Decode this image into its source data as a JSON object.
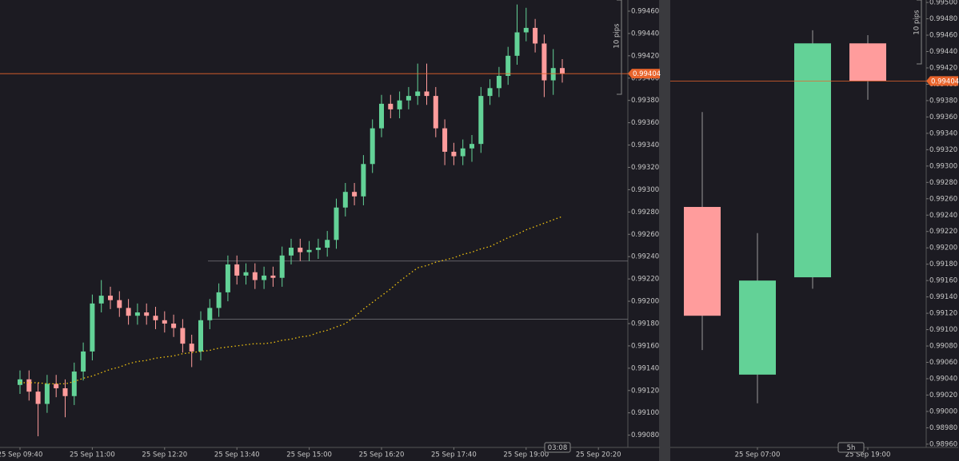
{
  "chart_data": [
    {
      "type": "candlestick",
      "categories": [
        "25 Sep 09:40",
        null,
        null,
        null,
        null,
        null,
        null,
        null,
        "25 Sep 11:00",
        null,
        null,
        null,
        null,
        null,
        null,
        null,
        "25 Sep 12:20",
        null,
        null,
        null,
        null,
        null,
        null,
        null,
        "25 Sep 13:40",
        null,
        null,
        null,
        null,
        null,
        null,
        null,
        "25 Sep 15:00",
        null,
        null,
        null,
        null,
        null,
        null,
        null,
        "25 Sep 16:20",
        null,
        null,
        null,
        null,
        null,
        null,
        null,
        "25 Sep 17:40",
        null,
        null,
        null,
        null,
        null,
        null,
        null,
        "25 Sep 19:00",
        null,
        null,
        null,
        null,
        null,
        null,
        null,
        "25 Sep 20:20",
        null,
        null
      ],
      "open": [
        0.99125,
        0.9913,
        0.99119,
        0.99108,
        0.99126,
        0.99122,
        0.99115,
        0.99137,
        0.99155,
        0.99198,
        0.99205,
        0.99201,
        0.99194,
        0.99187,
        0.9919,
        0.99187,
        0.99183,
        0.9918,
        0.99176,
        0.99162,
        0.99155,
        0.99183,
        0.99194,
        0.99208,
        0.99233,
        0.99223,
        0.99226,
        0.99219,
        0.99223,
        0.99221,
        0.99241,
        0.99248,
        0.99244,
        0.99246,
        0.99248,
        0.99255,
        0.99284,
        0.99298,
        0.99294,
        0.99323,
        0.99355,
        0.99377,
        0.99372,
        0.9938,
        0.99384,
        0.99388,
        0.99384,
        0.99355,
        0.99334,
        0.9933,
        0.99337,
        0.99341,
        0.99384,
        0.99391,
        0.99402,
        0.9942,
        0.99441,
        0.99445,
        0.99431,
        0.99398,
        0.99409,
        null,
        null,
        null,
        null,
        null,
        null
      ],
      "high": [
        0.99138,
        0.99138,
        0.99127,
        0.99134,
        0.99134,
        0.9913,
        0.99145,
        0.99163,
        0.99206,
        0.99219,
        0.99213,
        0.99209,
        0.99202,
        0.99198,
        0.99198,
        0.99195,
        0.99191,
        0.99188,
        0.99184,
        0.9917,
        0.99191,
        0.99202,
        0.99216,
        0.99241,
        0.99241,
        0.99234,
        0.99234,
        0.99231,
        0.99231,
        0.99249,
        0.99256,
        0.99256,
        0.99254,
        0.99256,
        0.99263,
        0.99292,
        0.99306,
        0.99306,
        0.99331,
        0.99363,
        0.99385,
        0.99385,
        0.99388,
        0.99392,
        0.99413,
        0.99413,
        0.99392,
        0.99363,
        0.99342,
        0.99345,
        0.99349,
        0.99392,
        0.99399,
        0.9941,
        0.99428,
        0.99466,
        0.99463,
        0.99453,
        0.99439,
        0.99426,
        0.99417,
        null,
        null,
        null,
        null,
        null,
        null
      ],
      "low": [
        0.99117,
        0.99111,
        0.99079,
        0.991,
        0.99114,
        0.99096,
        0.99107,
        0.99129,
        0.99147,
        0.9919,
        0.99193,
        0.99186,
        0.99179,
        0.99179,
        0.99179,
        0.99175,
        0.99172,
        0.99168,
        0.99154,
        0.99141,
        0.99147,
        0.99175,
        0.99186,
        0.992,
        0.99215,
        0.99215,
        0.99211,
        0.99211,
        0.99213,
        0.99213,
        0.99233,
        0.99236,
        0.99236,
        0.99238,
        0.9924,
        0.99247,
        0.99276,
        0.99286,
        0.99286,
        0.99315,
        0.99347,
        0.99364,
        0.99364,
        0.99372,
        0.99376,
        0.99376,
        0.99347,
        0.99322,
        0.99322,
        0.99322,
        0.99325,
        0.99333,
        0.99376,
        0.99383,
        0.99394,
        0.99412,
        0.99433,
        0.99423,
        0.99383,
        0.99385,
        0.99396,
        null,
        null,
        null,
        null,
        null,
        null
      ],
      "close": [
        0.9913,
        0.99119,
        0.99108,
        0.99126,
        0.99122,
        0.99115,
        0.99137,
        0.99155,
        0.99198,
        0.99205,
        0.99201,
        0.99194,
        0.99187,
        0.9919,
        0.99187,
        0.99183,
        0.9918,
        0.99176,
        0.99162,
        0.99155,
        0.99183,
        0.99194,
        0.99208,
        0.99233,
        0.99223,
        0.99226,
        0.99219,
        0.99223,
        0.99221,
        0.99241,
        0.99248,
        0.99244,
        0.99246,
        0.99248,
        0.99255,
        0.99284,
        0.99298,
        0.99294,
        0.99323,
        0.99355,
        0.99377,
        0.99372,
        0.9938,
        0.99384,
        0.99388,
        0.99384,
        0.99355,
        0.99334,
        0.9933,
        0.99337,
        0.99341,
        0.99384,
        0.99391,
        0.99402,
        0.9942,
        0.99441,
        0.99445,
        0.99431,
        0.99398,
        0.99409,
        0.99404,
        null,
        null,
        null,
        null,
        null,
        null
      ],
      "moving_average": {
        "color": "#f2c40f",
        "values": [
          0.99127,
          0.99127,
          0.99127,
          0.99126,
          0.99126,
          0.99126,
          0.99128,
          0.99131,
          0.99133,
          0.99136,
          0.99139,
          0.99141,
          0.99144,
          0.99146,
          0.99147,
          0.99149,
          0.9915,
          0.99151,
          0.99153,
          0.99154,
          0.99155,
          0.99156,
          0.99158,
          0.99159,
          0.9916,
          0.99161,
          0.99162,
          0.99162,
          0.99163,
          0.99165,
          0.99166,
          0.99168,
          0.99169,
          0.99172,
          0.99174,
          0.99177,
          0.9918,
          0.99186,
          0.99193,
          0.99199,
          0.99205,
          0.99211,
          0.99218,
          0.99224,
          0.9923,
          0.99232,
          0.99235,
          0.99237,
          0.99239,
          0.99242,
          0.99244,
          0.99247,
          0.99249,
          0.99253,
          0.99257,
          0.9926,
          0.99264,
          0.99267,
          0.9927,
          0.99273,
          0.99276,
          null,
          null,
          null,
          null,
          null,
          null
        ]
      },
      "levels": [
        0.99236,
        0.99184
      ],
      "current_price": 0.99404,
      "up_color": "#63d297",
      "down_color": "#ff9c9c",
      "price_color": "#e8642c",
      "ylim": [
        0.99069,
        0.9947
      ],
      "yticks": [
        {
          "value": 0.9908,
          "label": "0.99080"
        },
        {
          "value": 0.991,
          "label": "0.99100"
        },
        {
          "value": 0.9912,
          "label": "0.99120"
        },
        {
          "value": 0.9914,
          "label": "0.99140"
        },
        {
          "value": 0.9916,
          "label": "0.99160"
        },
        {
          "value": 0.9918,
          "label": "0.99180"
        },
        {
          "value": 0.992,
          "label": "0.99200"
        },
        {
          "value": 0.9922,
          "label": "0.99220"
        },
        {
          "value": 0.9924,
          "label": "0.99240"
        },
        {
          "value": 0.9926,
          "label": "0.99260"
        },
        {
          "value": 0.9928,
          "label": "0.99280"
        },
        {
          "value": 0.993,
          "label": "0.99300"
        },
        {
          "value": 0.9932,
          "label": "0.99320"
        },
        {
          "value": 0.9934,
          "label": "0.99340"
        },
        {
          "value": 0.9936,
          "label": "0.99360"
        },
        {
          "value": 0.9938,
          "label": "0.99380"
        },
        {
          "value": 0.994,
          "label": "0.99400"
        },
        {
          "value": 0.9942,
          "label": "0.99420"
        },
        {
          "value": 0.9944,
          "label": "0.99440"
        },
        {
          "value": 0.9946,
          "label": "0.99460"
        }
      ],
      "ruler_label": "10 pips",
      "timer_label": "03:08"
    },
    {
      "type": "candlestick",
      "categories": [
        null,
        "25 Sep 07:00",
        null,
        "25 Sep 19:00"
      ],
      "open": [
        0.9925,
        0.99045,
        0.99164,
        0.9945
      ],
      "high": [
        0.99366,
        0.99218,
        0.99466,
        0.9946
      ],
      "low": [
        0.99075,
        0.9901,
        0.9915,
        0.99381
      ],
      "close": [
        0.99117,
        0.9916,
        0.9945,
        0.99404
      ],
      "current_price": 0.99404,
      "up_color": "#63d297",
      "down_color": "#ff9c9c",
      "price_color": "#e8642c",
      "ylim": [
        0.98956,
        0.99503
      ],
      "yticks": [
        {
          "value": 0.9896,
          "label": "0.98960"
        },
        {
          "value": 0.9898,
          "label": "0.98980"
        },
        {
          "value": 0.99,
          "label": "0.99000"
        },
        {
          "value": 0.9902,
          "label": "0.99020"
        },
        {
          "value": 0.9904,
          "label": "0.99040"
        },
        {
          "value": 0.9906,
          "label": "0.99060"
        },
        {
          "value": 0.9908,
          "label": "0.99080"
        },
        {
          "value": 0.991,
          "label": "0.99100"
        },
        {
          "value": 0.9912,
          "label": "0.99120"
        },
        {
          "value": 0.9914,
          "label": "0.99140"
        },
        {
          "value": 0.9916,
          "label": "0.99160"
        },
        {
          "value": 0.9918,
          "label": "0.99180"
        },
        {
          "value": 0.992,
          "label": "0.99200"
        },
        {
          "value": 0.9922,
          "label": "0.99220"
        },
        {
          "value": 0.9924,
          "label": "0.99240"
        },
        {
          "value": 0.9926,
          "label": "0.99260"
        },
        {
          "value": 0.9928,
          "label": "0.99280"
        },
        {
          "value": 0.993,
          "label": "0.99300"
        },
        {
          "value": 0.9932,
          "label": "0.99320"
        },
        {
          "value": 0.9934,
          "label": "0.99340"
        },
        {
          "value": 0.9936,
          "label": "0.99360"
        },
        {
          "value": 0.9938,
          "label": "0.99380"
        },
        {
          "value": 0.994,
          "label": "0.99400"
        },
        {
          "value": 0.9942,
          "label": "0.99420"
        },
        {
          "value": 0.9944,
          "label": "0.99440"
        },
        {
          "value": 0.9946,
          "label": "0.99460"
        },
        {
          "value": 0.9948,
          "label": "0.99480"
        },
        {
          "value": 0.995,
          "label": "0.99500"
        }
      ],
      "ruler_label": "10 pips",
      "timer_label": "5h"
    }
  ]
}
